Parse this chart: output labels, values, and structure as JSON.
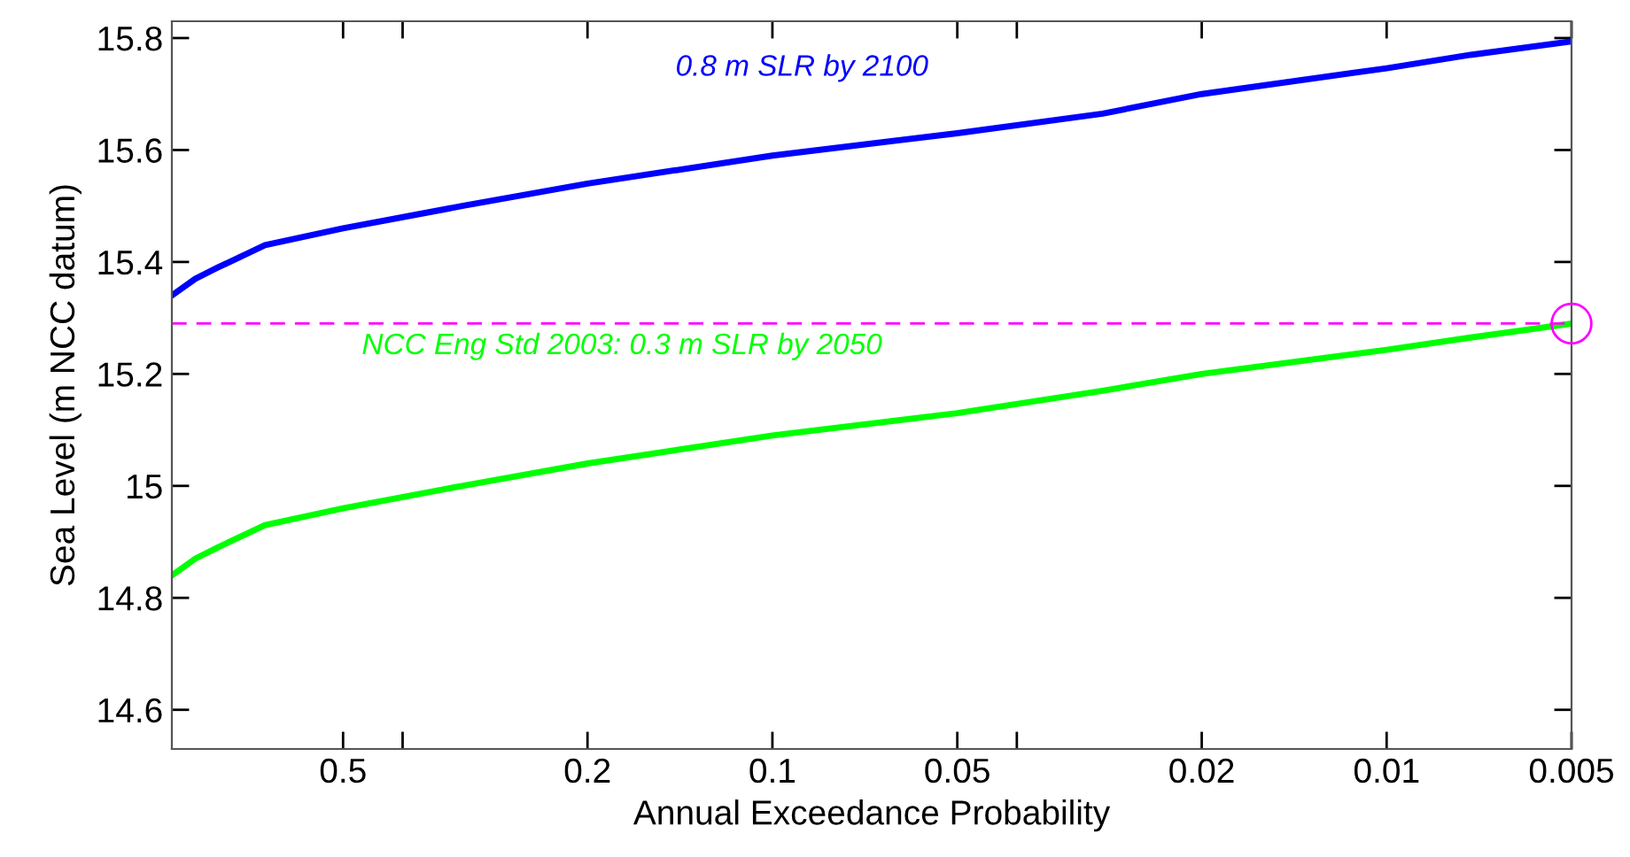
{
  "chart_data": {
    "type": "line",
    "xlabel": "Annual Exceedance Probability",
    "ylabel": "Sea Level (m NCC datum)",
    "log": "x",
    "xlim": [
      0.95,
      0.005
    ],
    "xticks": [
      0.5,
      {
        "value": 0.4,
        "label": null
      },
      0.2,
      0.1,
      0.05,
      {
        "value": 0.04,
        "label": null
      },
      0.02,
      0.01,
      0.005
    ],
    "ylim": [
      14.53,
      15.83
    ],
    "yticks": [
      14.6,
      14.8,
      {
        "value": 15,
        "label": "15"
      },
      15.2,
      15.4,
      15.6,
      15.8
    ],
    "grid": false,
    "legend": false,
    "line_style": "solid",
    "series": [
      {
        "name": "0.8 m SLR by 2100",
        "color": "#0000ff",
        "x": [
          0.95,
          0.87,
          0.8,
          0.67,
          0.5,
          0.32,
          0.2,
          0.1,
          0.05,
          0.029,
          0.02,
          0.01,
          0.0073,
          0.005
        ],
        "values": [
          15.34,
          15.37,
          15.39,
          15.43,
          15.46,
          15.5,
          15.54,
          15.59,
          15.63,
          15.665,
          15.7,
          15.746,
          15.77,
          15.794
        ]
      },
      {
        "name": "NCC Eng Std 2003: 0.3 m SLR by 2050",
        "color": "#00ff00",
        "x": [
          0.95,
          0.87,
          0.8,
          0.67,
          0.5,
          0.32,
          0.2,
          0.1,
          0.05,
          0.029,
          0.02,
          0.01,
          0.0073,
          0.005
        ],
        "values": [
          14.84,
          14.87,
          14.89,
          14.93,
          14.96,
          15.0,
          15.04,
          15.09,
          15.13,
          15.17,
          15.2,
          15.243,
          15.265,
          15.29
        ]
      },
      {
        "type": "scatter",
        "marker": "circle",
        "color": "#ff00ff",
        "x": [
          0.005
        ],
        "values": [
          15.29
        ]
      }
    ],
    "ref_lines": [
      {
        "axis": "y",
        "value": 15.29,
        "color": "#ff00ff",
        "line_style": "dashed"
      }
    ]
  }
}
